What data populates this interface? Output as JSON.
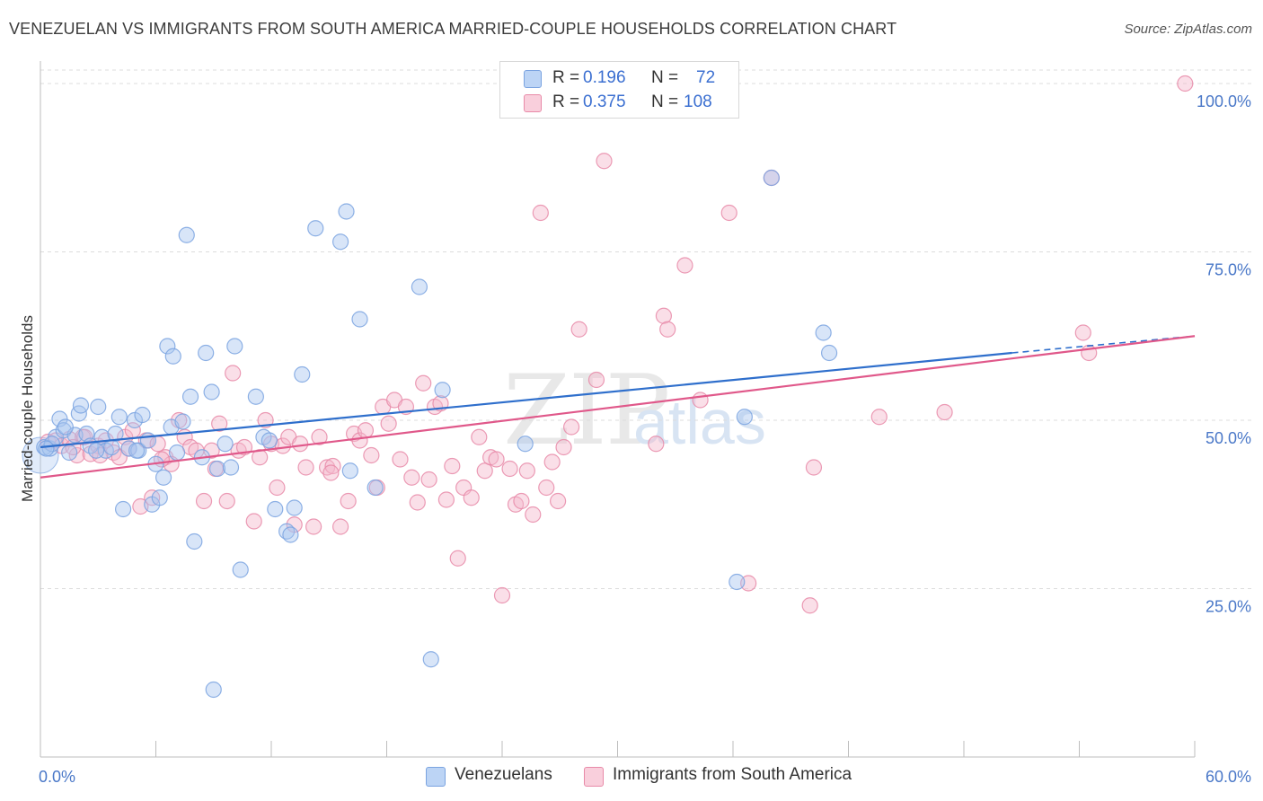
{
  "title": "VENEZUELAN VS IMMIGRANTS FROM SOUTH AMERICA MARRIED-COUPLE HOUSEHOLDS CORRELATION CHART",
  "source": "Source: ZipAtlas.com",
  "watermark": {
    "zip": "ZIP",
    "atlas": "atlas"
  },
  "legend": {
    "rows": [
      {
        "r_label": "R =",
        "r_value": "0.196",
        "n_label": "N =",
        "n_value": "72",
        "color": "#a8c6f0"
      },
      {
        "r_label": "R =",
        "r_value": "0.375",
        "n_label": "N =",
        "n_value": "108",
        "color": "#f5b8cb"
      }
    ]
  },
  "bottom_legend": [
    {
      "label": "Venezuelans",
      "color": "#a8c6f0"
    },
    {
      "label": "Immigrants from South America",
      "color": "#f5b8cb"
    }
  ],
  "chart_data": {
    "type": "scatter",
    "ylabel": "Married-couple Households",
    "xlim": [
      0,
      60
    ],
    "ylim": [
      0,
      102
    ],
    "x_tick_labels": [
      "0.0%",
      "60.0%"
    ],
    "y_ticks": [
      25,
      50,
      75,
      100
    ],
    "y_tick_labels": [
      "25.0%",
      "50.0%",
      "75.0%",
      "100.0%"
    ],
    "grid": true,
    "series": [
      {
        "name": "Venezuelans",
        "color": "#7aa3e0",
        "fill": "#a8c6f0",
        "line_color": "#2f6fcc",
        "trend": {
          "x": [
            0,
            50.5
          ],
          "y": [
            46.0,
            60.0
          ],
          "dashed_to": [
            60,
            62.5
          ]
        },
        "points": [
          [
            0.2,
            46.0
          ],
          [
            0.5,
            45.8
          ],
          [
            0.8,
            47.5
          ],
          [
            1.0,
            50.2
          ],
          [
            1.2,
            48.5
          ],
          [
            1.5,
            45.2
          ],
          [
            1.8,
            47.8
          ],
          [
            2.0,
            51.0
          ],
          [
            2.1,
            52.2
          ],
          [
            2.4,
            48.0
          ],
          [
            2.6,
            46.2
          ],
          [
            3.0,
            52.0
          ],
          [
            3.2,
            47.5
          ],
          [
            3.4,
            45.5
          ],
          [
            3.7,
            46.0
          ],
          [
            3.9,
            48.0
          ],
          [
            4.1,
            50.5
          ],
          [
            4.3,
            36.8
          ],
          [
            4.6,
            45.8
          ],
          [
            4.9,
            50.0
          ],
          [
            5.1,
            45.5
          ],
          [
            5.3,
            50.8
          ],
          [
            5.6,
            47.0
          ],
          [
            5.8,
            37.5
          ],
          [
            6.0,
            43.5
          ],
          [
            6.2,
            38.5
          ],
          [
            6.4,
            41.5
          ],
          [
            6.6,
            61.0
          ],
          [
            6.8,
            49.0
          ],
          [
            6.9,
            59.5
          ],
          [
            7.1,
            45.2
          ],
          [
            7.4,
            49.8
          ],
          [
            7.6,
            77.5
          ],
          [
            7.8,
            53.5
          ],
          [
            8.0,
            32.0
          ],
          [
            8.4,
            44.5
          ],
          [
            8.6,
            60.0
          ],
          [
            8.9,
            54.2
          ],
          [
            9.2,
            42.8
          ],
          [
            9.6,
            46.5
          ],
          [
            9.9,
            43.0
          ],
          [
            10.1,
            61.0
          ],
          [
            10.4,
            27.8
          ],
          [
            11.2,
            53.5
          ],
          [
            11.6,
            47.5
          ],
          [
            11.9,
            47.0
          ],
          [
            12.2,
            36.8
          ],
          [
            12.8,
            33.5
          ],
          [
            13.0,
            33.0
          ],
          [
            13.2,
            37.0
          ],
          [
            13.6,
            56.8
          ],
          [
            14.3,
            78.5
          ],
          [
            15.6,
            76.5
          ],
          [
            15.9,
            81.0
          ],
          [
            16.1,
            42.5
          ],
          [
            16.6,
            65.0
          ],
          [
            17.4,
            40.0
          ],
          [
            19.7,
            69.8
          ],
          [
            20.3,
            14.5
          ],
          [
            20.9,
            54.5
          ],
          [
            25.2,
            46.5
          ],
          [
            36.2,
            26.0
          ],
          [
            36.6,
            50.5
          ],
          [
            38.0,
            86.0
          ],
          [
            40.7,
            63.0
          ],
          [
            41.0,
            60.0
          ],
          [
            0.6,
            46.5
          ],
          [
            1.3,
            49.0
          ],
          [
            2.9,
            45.5
          ],
          [
            9.0,
            10.0
          ],
          [
            5.0,
            45.5
          ],
          [
            0.3,
            45.8
          ]
        ]
      },
      {
        "name": "Immigrants from South America",
        "color": "#e88aa8",
        "fill": "#f5b8cb",
        "line_color": "#e0588a",
        "trend": {
          "x": [
            0,
            60
          ],
          "y": [
            41.5,
            62.5
          ]
        },
        "points": [
          [
            0.4,
            46.8
          ],
          [
            0.8,
            47.0
          ],
          [
            1.1,
            46.2
          ],
          [
            1.5,
            47.2
          ],
          [
            1.9,
            44.8
          ],
          [
            2.2,
            47.5
          ],
          [
            2.6,
            45.0
          ],
          [
            3.0,
            46.2
          ],
          [
            3.4,
            47.0
          ],
          [
            3.8,
            45.2
          ],
          [
            4.1,
            44.5
          ],
          [
            4.4,
            47.5
          ],
          [
            4.8,
            48.5
          ],
          [
            5.2,
            37.2
          ],
          [
            5.5,
            47.0
          ],
          [
            5.8,
            38.5
          ],
          [
            6.1,
            46.5
          ],
          [
            6.5,
            44.5
          ],
          [
            6.8,
            43.5
          ],
          [
            7.2,
            50.0
          ],
          [
            7.5,
            47.5
          ],
          [
            7.8,
            46.0
          ],
          [
            8.1,
            45.5
          ],
          [
            8.5,
            38.0
          ],
          [
            8.9,
            45.5
          ],
          [
            9.1,
            42.8
          ],
          [
            9.3,
            49.5
          ],
          [
            9.7,
            38.0
          ],
          [
            10.0,
            57.0
          ],
          [
            10.3,
            45.5
          ],
          [
            10.6,
            46.0
          ],
          [
            11.1,
            35.0
          ],
          [
            11.4,
            44.5
          ],
          [
            11.7,
            50.0
          ],
          [
            12.0,
            46.5
          ],
          [
            12.3,
            40.0
          ],
          [
            12.6,
            46.2
          ],
          [
            12.9,
            47.5
          ],
          [
            13.2,
            34.5
          ],
          [
            13.5,
            46.5
          ],
          [
            13.8,
            43.0
          ],
          [
            14.2,
            34.2
          ],
          [
            14.5,
            47.5
          ],
          [
            14.9,
            43.0
          ],
          [
            15.2,
            43.2
          ],
          [
            15.6,
            34.2
          ],
          [
            16.0,
            38.0
          ],
          [
            16.3,
            48.0
          ],
          [
            16.6,
            47.0
          ],
          [
            16.9,
            48.5
          ],
          [
            17.2,
            44.8
          ],
          [
            17.5,
            40.0
          ],
          [
            17.8,
            52.0
          ],
          [
            18.1,
            49.5
          ],
          [
            18.4,
            53.0
          ],
          [
            18.7,
            44.2
          ],
          [
            19.0,
            52.0
          ],
          [
            19.3,
            41.5
          ],
          [
            19.6,
            37.8
          ],
          [
            19.9,
            55.5
          ],
          [
            20.2,
            41.2
          ],
          [
            20.5,
            52.0
          ],
          [
            20.8,
            52.5
          ],
          [
            21.1,
            38.2
          ],
          [
            21.4,
            43.2
          ],
          [
            21.7,
            29.5
          ],
          [
            22.0,
            40.0
          ],
          [
            22.4,
            38.5
          ],
          [
            22.8,
            47.5
          ],
          [
            23.1,
            42.5
          ],
          [
            23.4,
            44.5
          ],
          [
            23.7,
            44.2
          ],
          [
            24.0,
            24.0
          ],
          [
            24.4,
            42.8
          ],
          [
            24.7,
            37.5
          ],
          [
            25.0,
            38.0
          ],
          [
            25.3,
            42.5
          ],
          [
            25.6,
            36.0
          ],
          [
            26.0,
            80.8
          ],
          [
            26.3,
            40.0
          ],
          [
            26.6,
            43.8
          ],
          [
            26.9,
            38.0
          ],
          [
            27.2,
            46.0
          ],
          [
            27.6,
            49.0
          ],
          [
            28.0,
            63.5
          ],
          [
            28.9,
            56.0
          ],
          [
            29.3,
            88.5
          ],
          [
            32.0,
            46.5
          ],
          [
            32.4,
            65.5
          ],
          [
            32.6,
            63.5
          ],
          [
            33.5,
            73.0
          ],
          [
            34.3,
            53.0
          ],
          [
            35.8,
            80.8
          ],
          [
            36.8,
            25.8
          ],
          [
            38.0,
            86.0
          ],
          [
            40.0,
            22.5
          ],
          [
            40.2,
            43.0
          ],
          [
            43.6,
            50.5
          ],
          [
            47.0,
            51.2
          ],
          [
            54.2,
            63.0
          ],
          [
            54.5,
            60.0
          ],
          [
            59.5,
            100.0
          ],
          [
            1.7,
            46.0
          ],
          [
            3.1,
            44.8
          ],
          [
            6.3,
            44.2
          ],
          [
            4.6,
            45.8
          ],
          [
            15.1,
            42.2
          ],
          [
            2.3,
            47.5
          ]
        ]
      }
    ]
  }
}
